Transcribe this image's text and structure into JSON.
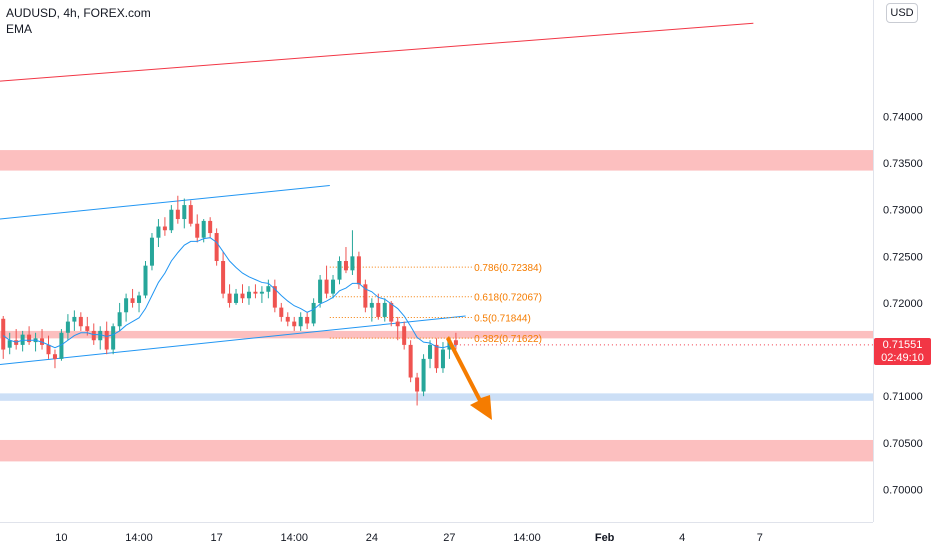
{
  "header": {
    "title": "AUDUSD, 4h, FOREX.com",
    "indicator": "EMA",
    "currency_button": "USD"
  },
  "last_price": {
    "value": "0.71551",
    "countdown": "02:49:10",
    "color": "#f23645"
  },
  "colors": {
    "up": "#26a69a",
    "down": "#ef5350",
    "ema": "#2196f3",
    "fib": "#f57c00",
    "zone_red": "#fbb4b4",
    "zone_blue": "#c6dcf5",
    "trend_red": "#f23645",
    "arrow": "#f57c00"
  },
  "chart_data": {
    "type": "candlestick",
    "ylim": [
      0.6965,
      0.7525
    ],
    "y_ticks": [
      "0.70000",
      "0.70500",
      "0.71000",
      "0.71500",
      "0.72000",
      "0.72500",
      "0.73000",
      "0.73500",
      "0.74000"
    ],
    "y_tick_values": [
      0.7,
      0.705,
      0.71,
      0.715,
      0.72,
      0.725,
      0.73,
      0.735,
      0.74
    ],
    "x_ticks": [
      "10",
      "14:00",
      "17",
      "14:00",
      "24",
      "27",
      "14:00",
      "Feb",
      "4",
      "7"
    ],
    "x_tick_bold": [
      false,
      false,
      false,
      false,
      false,
      false,
      false,
      true,
      false,
      false
    ],
    "x_tick_bar": [
      9,
      21,
      33,
      45,
      57,
      69,
      81,
      93,
      105,
      117
    ],
    "bar_count_visible": 135,
    "fib_levels": [
      {
        "label": "0.786(0.72384)",
        "price": 0.72384
      },
      {
        "label": "0.618(0.72067)",
        "price": 0.72067
      },
      {
        "label": "0.5(0.71844)",
        "price": 0.71844
      },
      {
        "label": "0.382(0.71622)",
        "price": 0.71622
      }
    ],
    "zones": [
      {
        "kind": "resistance",
        "top": 0.7364,
        "bottom": 0.7342
      },
      {
        "kind": "resistance",
        "top": 0.717,
        "bottom": 0.7162
      },
      {
        "kind": "support",
        "top": 0.7103,
        "bottom": 0.7095
      },
      {
        "kind": "resistance",
        "top": 0.7053,
        "bottom": 0.703
      }
    ],
    "trendlines": [
      {
        "name": "long-red",
        "from": [
          -0.5,
          0.7438
        ],
        "to": [
          116,
          0.75
        ]
      },
      {
        "name": "channel-upper",
        "from": [
          -0.5,
          0.729
        ],
        "to": [
          50.5,
          0.7326
        ]
      },
      {
        "name": "channel-lower",
        "from": [
          -0.5,
          0.7134
        ],
        "to": [
          71.5,
          0.7186
        ]
      }
    ],
    "candles": [
      [
        0.7183,
        0.7186,
        0.714,
        0.715
      ],
      [
        0.7152,
        0.7168,
        0.7145,
        0.716
      ],
      [
        0.716,
        0.7172,
        0.715,
        0.7155
      ],
      [
        0.7155,
        0.717,
        0.7148,
        0.7166
      ],
      [
        0.7166,
        0.7175,
        0.7155,
        0.7158
      ],
      [
        0.7158,
        0.7168,
        0.7148,
        0.7162
      ],
      [
        0.7162,
        0.7172,
        0.715,
        0.7155
      ],
      [
        0.7155,
        0.7165,
        0.714,
        0.7145
      ],
      [
        0.7145,
        0.715,
        0.713,
        0.714
      ],
      [
        0.714,
        0.7172,
        0.7138,
        0.7168
      ],
      [
        0.7168,
        0.7188,
        0.716,
        0.718
      ],
      [
        0.718,
        0.7192,
        0.717,
        0.7185
      ],
      [
        0.7185,
        0.719,
        0.717,
        0.7175
      ],
      [
        0.7175,
        0.7185,
        0.7165,
        0.717
      ],
      [
        0.717,
        0.7178,
        0.7155,
        0.716
      ],
      [
        0.716,
        0.7175,
        0.715,
        0.717
      ],
      [
        0.717,
        0.718,
        0.7145,
        0.715
      ],
      [
        0.715,
        0.7178,
        0.7145,
        0.7175
      ],
      [
        0.7175,
        0.72,
        0.717,
        0.719
      ],
      [
        0.719,
        0.721,
        0.718,
        0.7205
      ],
      [
        0.7205,
        0.7215,
        0.7195,
        0.72
      ],
      [
        0.72,
        0.7212,
        0.719,
        0.7208
      ],
      [
        0.7208,
        0.7245,
        0.7205,
        0.724
      ],
      [
        0.724,
        0.7275,
        0.7235,
        0.727
      ],
      [
        0.727,
        0.729,
        0.726,
        0.7282
      ],
      [
        0.7282,
        0.7292,
        0.7272,
        0.7278
      ],
      [
        0.7278,
        0.7305,
        0.7275,
        0.73
      ],
      [
        0.73,
        0.7315,
        0.7285,
        0.729
      ],
      [
        0.729,
        0.7312,
        0.728,
        0.7305
      ],
      [
        0.7305,
        0.731,
        0.7282,
        0.7285
      ],
      [
        0.7285,
        0.7295,
        0.7265,
        0.727
      ],
      [
        0.727,
        0.729,
        0.7265,
        0.7288
      ],
      [
        0.7288,
        0.7292,
        0.727,
        0.7275
      ],
      [
        0.7275,
        0.728,
        0.724,
        0.7245
      ],
      [
        0.7245,
        0.7255,
        0.7205,
        0.721
      ],
      [
        0.721,
        0.722,
        0.7195,
        0.72
      ],
      [
        0.72,
        0.7215,
        0.7198,
        0.721
      ],
      [
        0.721,
        0.722,
        0.72,
        0.7205
      ],
      [
        0.7205,
        0.7218,
        0.7198,
        0.7212
      ],
      [
        0.7212,
        0.722,
        0.7205,
        0.721
      ],
      [
        0.721,
        0.7218,
        0.72,
        0.7212
      ],
      [
        0.7212,
        0.7225,
        0.7205,
        0.7218
      ],
      [
        0.7218,
        0.7225,
        0.719,
        0.7195
      ],
      [
        0.7195,
        0.72,
        0.718,
        0.7185
      ],
      [
        0.7185,
        0.719,
        0.7175,
        0.718
      ],
      [
        0.718,
        0.7185,
        0.717,
        0.7175
      ],
      [
        0.7175,
        0.719,
        0.717,
        0.7185
      ],
      [
        0.7185,
        0.719,
        0.7172,
        0.7178
      ],
      [
        0.7178,
        0.7205,
        0.7175,
        0.72
      ],
      [
        0.72,
        0.723,
        0.7195,
        0.7225
      ],
      [
        0.7225,
        0.724,
        0.7205,
        0.721
      ],
      [
        0.721,
        0.723,
        0.7205,
        0.7225
      ],
      [
        0.7225,
        0.725,
        0.722,
        0.7245
      ],
      [
        0.7245,
        0.726,
        0.7232,
        0.7235
      ],
      [
        0.7235,
        0.7278,
        0.723,
        0.725
      ],
      [
        0.725,
        0.7255,
        0.7215,
        0.722
      ],
      [
        0.722,
        0.7225,
        0.719,
        0.7195
      ],
      [
        0.7195,
        0.7205,
        0.718,
        0.72
      ],
      [
        0.72,
        0.721,
        0.7182,
        0.7185
      ],
      [
        0.7185,
        0.7205,
        0.718,
        0.72
      ],
      [
        0.72,
        0.7202,
        0.7175,
        0.718
      ],
      [
        0.718,
        0.7185,
        0.716,
        0.7175
      ],
      [
        0.7175,
        0.718,
        0.715,
        0.7155
      ],
      [
        0.7155,
        0.716,
        0.7115,
        0.712
      ],
      [
        0.712,
        0.7125,
        0.709,
        0.7105
      ],
      [
        0.7105,
        0.7145,
        0.71,
        0.714
      ],
      [
        0.714,
        0.716,
        0.713,
        0.7155
      ],
      [
        0.7155,
        0.7162,
        0.7125,
        0.713
      ],
      [
        0.713,
        0.7158,
        0.7125,
        0.715
      ],
      [
        0.715,
        0.7162,
        0.714,
        0.716
      ],
      [
        0.716,
        0.7168,
        0.715,
        0.7155
      ]
    ],
    "ema": [
      0.7165,
      0.716,
      0.7158,
      0.716,
      0.716,
      0.716,
      0.7158,
      0.7155,
      0.7152,
      0.7155,
      0.716,
      0.7165,
      0.7168,
      0.7168,
      0.7166,
      0.7166,
      0.7164,
      0.7166,
      0.717,
      0.7176,
      0.718,
      0.7184,
      0.7194,
      0.7208,
      0.7222,
      0.7232,
      0.7245,
      0.7254,
      0.7262,
      0.7266,
      0.7266,
      0.7269,
      0.727,
      0.7265,
      0.7255,
      0.7245,
      0.7238,
      0.7232,
      0.7228,
      0.7225,
      0.7222,
      0.7221,
      0.7215,
      0.7208,
      0.7202,
      0.7197,
      0.7194,
      0.719,
      0.7193,
      0.7199,
      0.7202,
      0.7206,
      0.7213,
      0.7216,
      0.7221,
      0.7221,
      0.7215,
      0.7212,
      0.7206,
      0.7204,
      0.7199,
      0.7194,
      0.7186,
      0.7175,
      0.7163,
      0.7158,
      0.7157,
      0.7153,
      0.7152,
      0.7154,
      0.7154
    ]
  }
}
